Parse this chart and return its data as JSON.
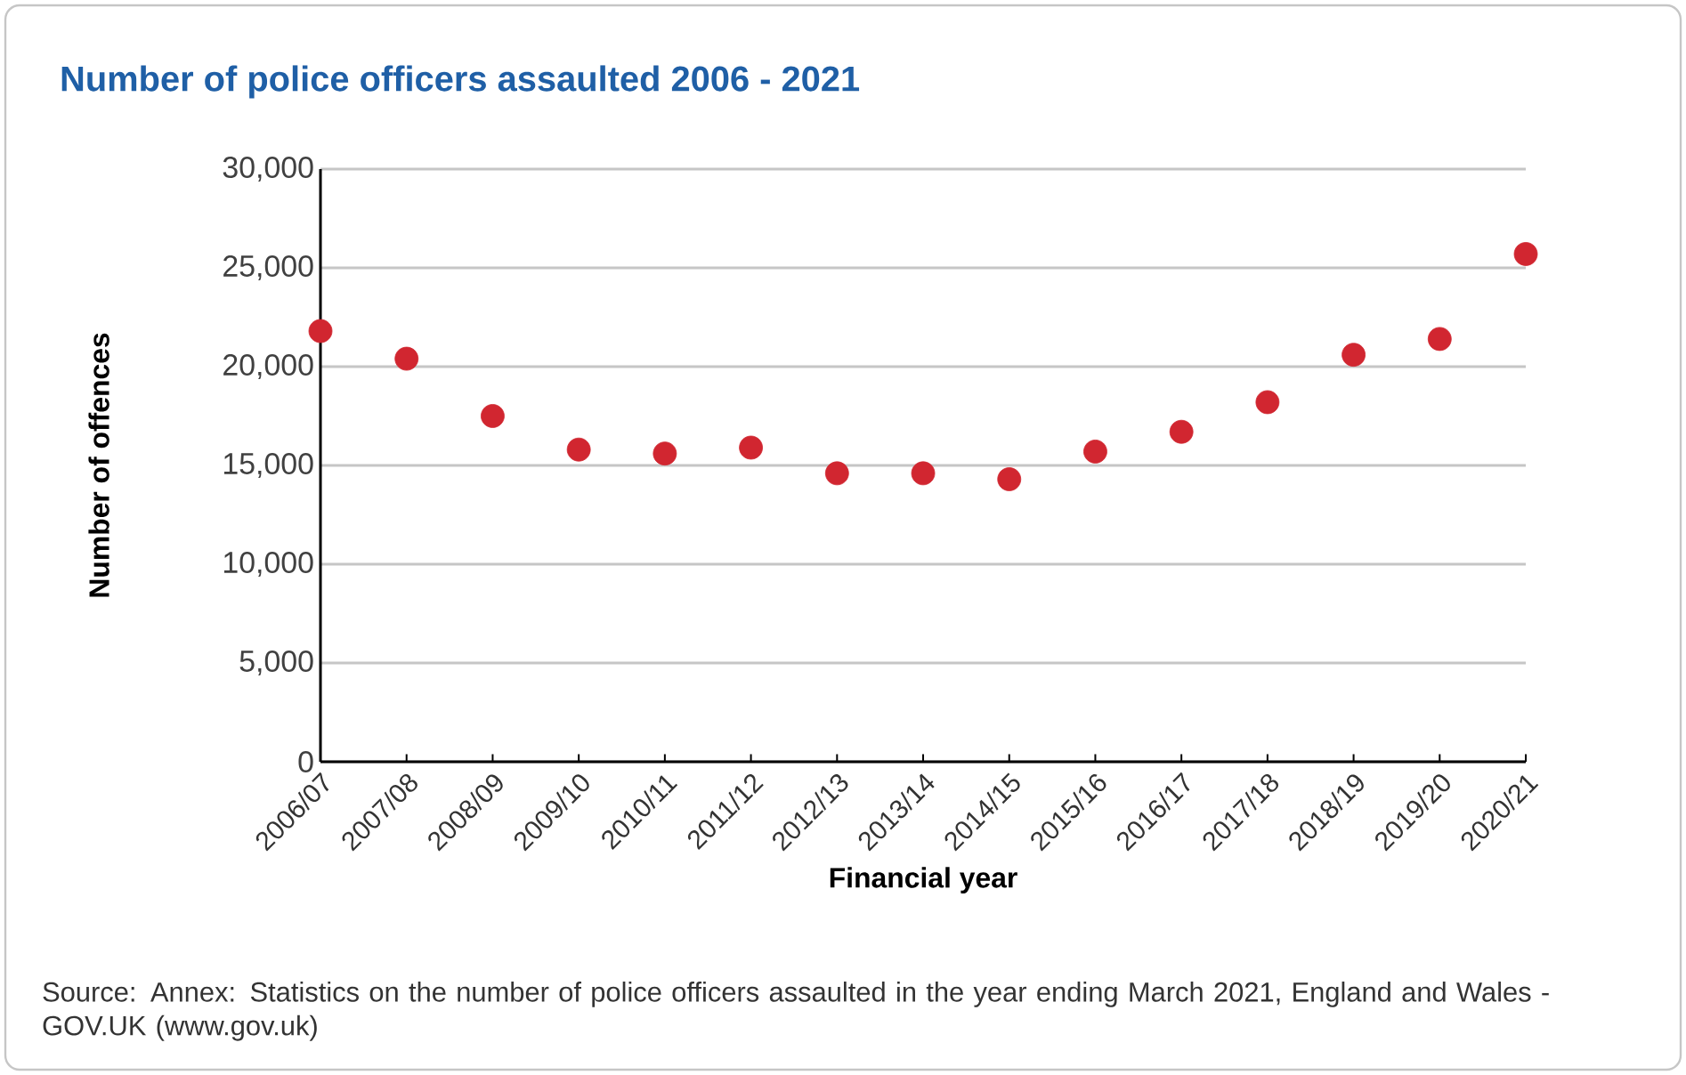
{
  "chart_data": {
    "type": "scatter",
    "title": "Number of police officers assaulted 2006 - 2021",
    "xlabel": "Financial year",
    "ylabel": "Number of offences",
    "annotations": [
      "Source: Annex: Statistics on the number of police officers assaulted in the year ending March 2021, England and Wales - GOV.UK (www.gov.uk)"
    ],
    "categories": [
      "2006/07",
      "2007/08",
      "2008/09",
      "2009/10",
      "2010/11",
      "2011/12",
      "2012/13",
      "2013/14",
      "2014/15",
      "2015/16",
      "2016/17",
      "2017/18",
      "2018/19",
      "2019/20",
      "2020/21"
    ],
    "values": [
      21800,
      20400,
      17500,
      15800,
      15600,
      15900,
      14600,
      14600,
      14300,
      15700,
      16700,
      18200,
      20600,
      21400,
      25700
    ],
    "color": "#d12630",
    "marker": "circle",
    "grid": "y",
    "ylim": [
      0,
      30000
    ],
    "yticks": [
      {
        "value": 0,
        "label": "0"
      },
      {
        "value": 5000,
        "label": "5,000"
      },
      {
        "value": 10000,
        "label": "10,000"
      },
      {
        "value": 15000,
        "label": "15,000"
      },
      {
        "value": 20000,
        "label": "20,000"
      },
      {
        "value": 25000,
        "label": "25,000"
      },
      {
        "value": 30000,
        "label": "30,000"
      }
    ]
  }
}
